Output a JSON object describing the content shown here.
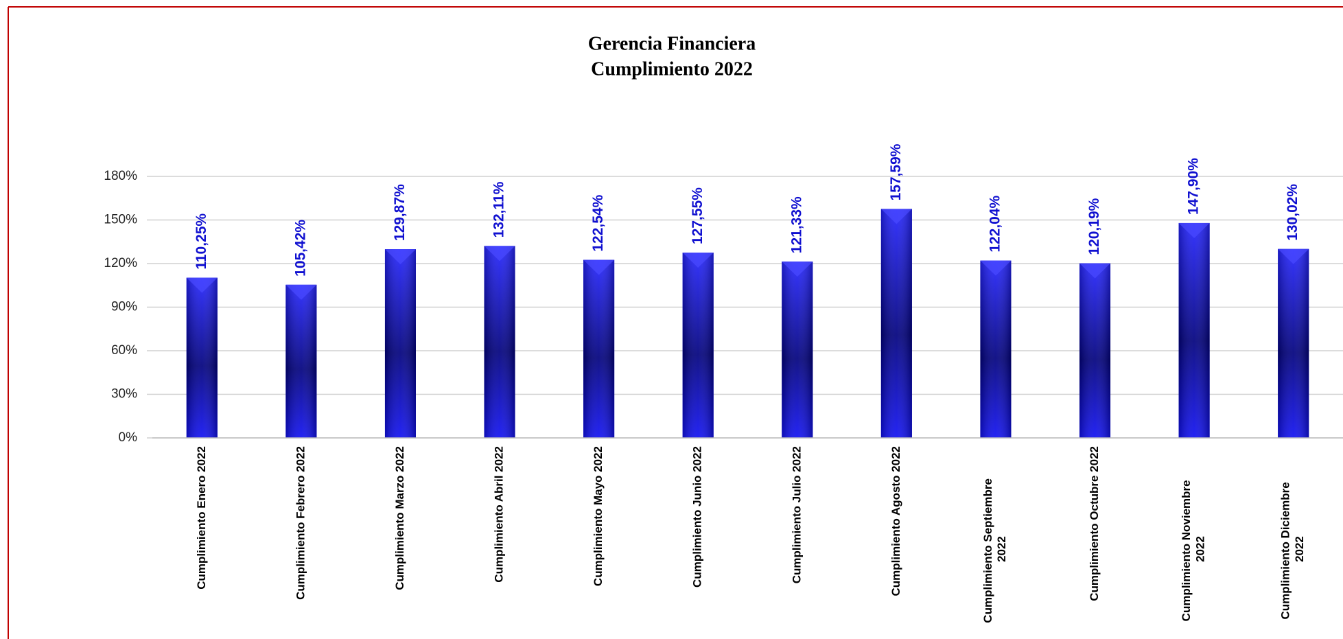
{
  "chart_data": {
    "type": "bar",
    "title": [
      "Gerencia Financiera",
      "Cumplimiento 2022"
    ],
    "categories": [
      "Cumplimiento Enero 2022",
      "Cumplimiento Febrero 2022",
      "Cumplimiento Marzo 2022",
      "Cumplimiento Abril 2022",
      "Cumplimiento Mayo 2022",
      "Cumplimiento Junio 2022",
      "Cumplimiento Julio 2022",
      "Cumplimiento Agosto 2022",
      "Cumplimiento Septiembre 2022",
      "Cumplimiento Octubre 2022",
      "Cumplimiento Noviembre 2022",
      "Cumplimiento Diciembre 2022"
    ],
    "values": [
      110.25,
      105.42,
      129.87,
      132.11,
      122.54,
      127.55,
      121.33,
      157.59,
      122.04,
      120.19,
      147.9,
      130.02
    ],
    "value_labels": [
      "110,25%",
      "105,42%",
      "129,87%",
      "132,11%",
      "122,54%",
      "127,55%",
      "121,33%",
      "157,59%",
      "122,04%",
      "120,19%",
      "147,90%",
      "130,02%"
    ],
    "color": "#0000ff",
    "ylim": [
      0,
      180
    ],
    "yticks": [
      {
        "value": 0,
        "label": "0%"
      },
      {
        "value": 30,
        "label": "30%"
      },
      {
        "value": 60,
        "label": "60%"
      },
      {
        "value": 90,
        "label": "90%"
      },
      {
        "value": 120,
        "label": "120%"
      },
      {
        "value": 150,
        "label": "150%"
      },
      {
        "value": 180,
        "label": "180%"
      }
    ],
    "grid": true
  }
}
